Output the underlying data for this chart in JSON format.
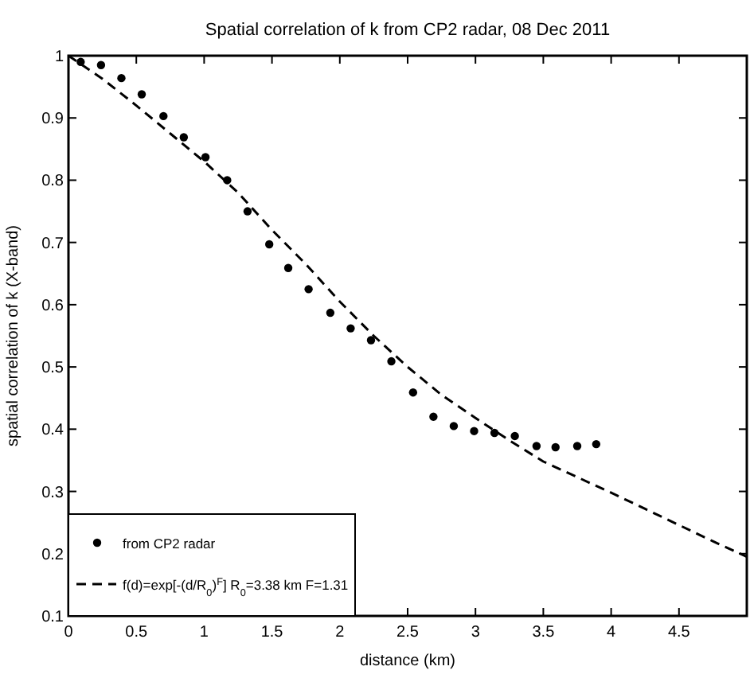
{
  "chart_data": {
    "type": "scatter",
    "title": "Spatial correlation of k from CP2 radar, 08 Dec 2011",
    "xlabel": "distance (km)",
    "ylabel": "spatial correlation of k  (X-band)",
    "xlim": [
      0,
      5
    ],
    "ylim": [
      0.1,
      1
    ],
    "xticks": [
      0,
      0.5,
      1,
      1.5,
      2,
      2.5,
      3,
      3.5,
      4,
      4.5
    ],
    "yticks": [
      0.1,
      0.2,
      0.3,
      0.4,
      0.5,
      0.6,
      0.7,
      0.8,
      0.9,
      1
    ],
    "grid": false,
    "legend": "bottom left",
    "series": [
      {
        "name": "from CP2 radar",
        "marker": "circle",
        "color": "#000000",
        "x": [
          0.09,
          0.24,
          0.39,
          0.54,
          0.7,
          0.85,
          1.01,
          1.17,
          1.32,
          1.48,
          1.62,
          1.77,
          1.93,
          2.08,
          2.23,
          2.38,
          2.54,
          2.69,
          2.84,
          2.99,
          3.14,
          3.29,
          3.45,
          3.59,
          3.75,
          3.89
        ],
        "values": [
          0.99,
          0.985,
          0.964,
          0.938,
          0.903,
          0.869,
          0.837,
          0.8,
          0.75,
          0.697,
          0.659,
          0.625,
          0.587,
          0.562,
          0.543,
          0.509,
          0.459,
          0.42,
          0.405,
          0.397,
          0.394,
          0.389,
          0.373,
          0.371,
          0.373,
          0.376
        ]
      },
      {
        "name": "f(d)=exp[-(d/R$_{0}$)$^{F}$]  R$_{0}$=3.38 km F=1.31",
        "type": "line",
        "line_style": "dashed",
        "marker": "none",
        "color": "#000000",
        "x": [
          0,
          0.25,
          0.5,
          0.75,
          1,
          1.25,
          1.5,
          1.75,
          2,
          2.25,
          2.5,
          2.75,
          3,
          3.25,
          3.5,
          3.75,
          4,
          4.25,
          4.5,
          4.75,
          5
        ],
        "values": [
          1,
          0.963,
          0.92,
          0.875,
          0.83,
          0.78,
          0.72,
          0.665,
          0.605,
          0.55,
          0.5,
          0.455,
          0.418,
          0.382,
          0.348,
          0.323,
          0.298,
          0.272,
          0.246,
          0.22,
          0.195
        ]
      }
    ]
  }
}
